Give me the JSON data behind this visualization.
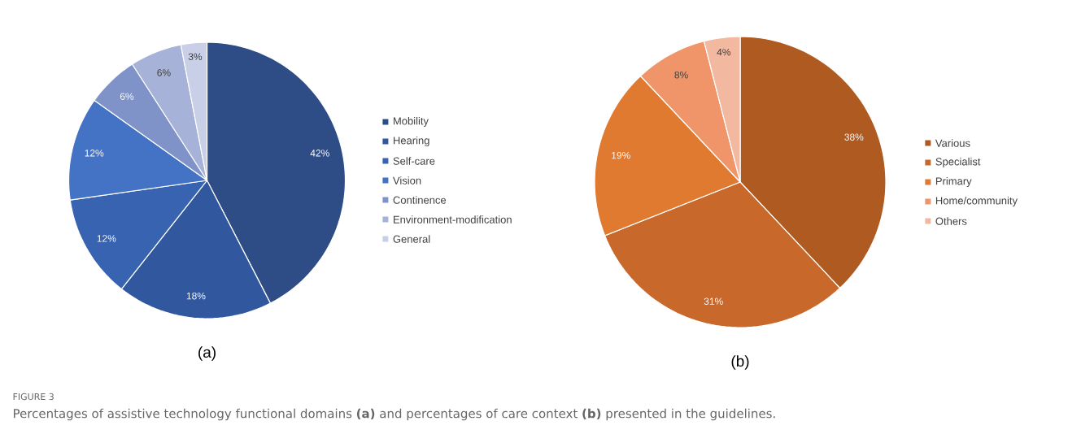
{
  "chart_data": [
    {
      "type": "pie",
      "title": "(a)",
      "categories": [
        "Mobility",
        "Hearing",
        "Self-care",
        "Vision",
        "Continence",
        "Environment-modification",
        "General"
      ],
      "values": [
        42,
        18,
        12,
        12,
        6,
        6,
        3
      ],
      "colors": [
        "#2e4d87",
        "#31589f",
        "#3763b0",
        "#4472c4",
        "#7f93c9",
        "#a6b2d8",
        "#c8cfe6"
      ],
      "value_labels": [
        "42%",
        "18%",
        "12%",
        "12%",
        "6%",
        "6%",
        "3%"
      ],
      "legend": "right",
      "annotations": [
        "FIGURE 3",
        "Percentages of assistive technology functional domains **(a)** and percentages of care context **(b)** presented in the guidelines."
      ]
    },
    {
      "type": "pie",
      "title": "(b)",
      "categories": [
        "Various",
        "Specialist",
        "Primary",
        "Home/community",
        "Others"
      ],
      "values": [
        38,
        31,
        19,
        8,
        4
      ],
      "colors": [
        "#ae5a21",
        "#c8682a",
        "#e07a30",
        "#ef9569",
        "#f2b8a0"
      ],
      "value_labels": [
        "38%",
        "31%",
        "19%",
        "8%",
        "4%"
      ],
      "legend": "right"
    }
  ]
}
